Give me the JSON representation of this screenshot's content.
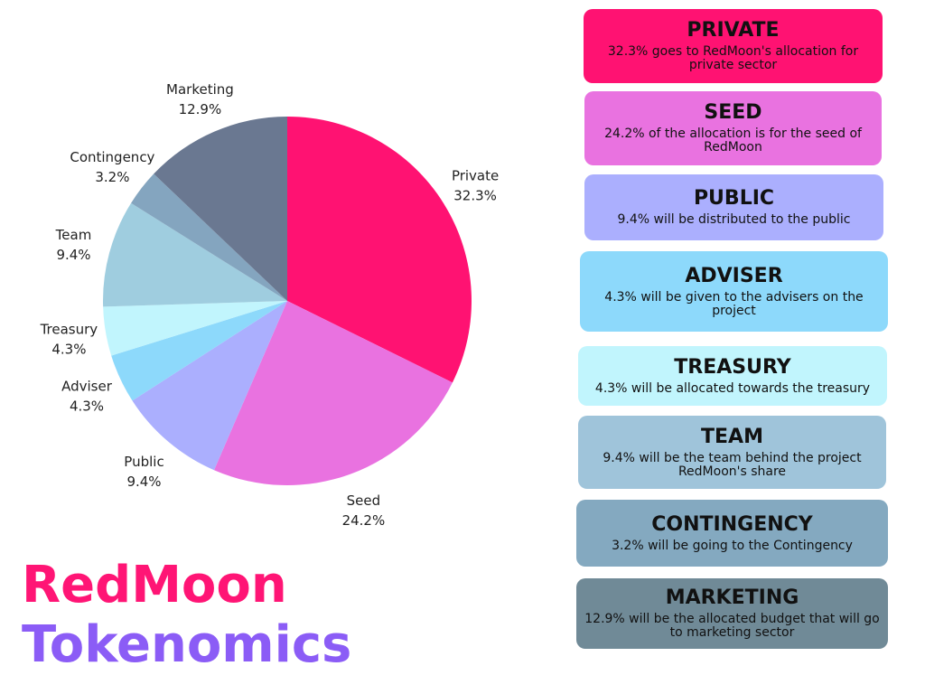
{
  "title": {
    "line1": "RedMoon",
    "line2": "Tokenomics",
    "line1_color": "#ff1575",
    "line2_color": "#8b5cf6"
  },
  "chart_data": {
    "type": "pie",
    "title": "",
    "slices": [
      {
        "label": "Private",
        "value": 32.3,
        "value_label": "32.3%",
        "color": "#ff1272"
      },
      {
        "label": "Seed",
        "value": 24.2,
        "value_label": "24.2%",
        "color": "#e972e0"
      },
      {
        "label": "Public",
        "value": 9.4,
        "value_label": "9.4%",
        "color": "#abaffe"
      },
      {
        "label": "Adviser",
        "value": 4.3,
        "value_label": "4.3%",
        "color": "#8dd9fb"
      },
      {
        "label": "Treasury",
        "value": 4.3,
        "value_label": "4.3%",
        "color": "#c1f5fd"
      },
      {
        "label": "Team",
        "value": 9.4,
        "value_label": "9.4%",
        "color": "#9fcddf"
      },
      {
        "label": "Contingency",
        "value": 3.2,
        "value_label": "3.2%",
        "color": "#84a5bf"
      },
      {
        "label": "Marketing",
        "value": 12.9,
        "value_label": "12.9%",
        "color": "#6a7891"
      }
    ]
  },
  "cards": [
    {
      "title": "PRIVATE",
      "desc": "32.3% goes to RedMoon's allocation for private sector",
      "bg": "#ff1272",
      "fg": "#111111"
    },
    {
      "title": "SEED",
      "desc": "24.2% of the allocation is for the seed of RedMoon",
      "bg": "#e972e0",
      "fg": "#111111"
    },
    {
      "title": "PUBLIC",
      "desc": "9.4% will be distributed to the public",
      "bg": "#abaffe",
      "fg": "#111111"
    },
    {
      "title": "ADVISER",
      "desc": "4.3% will be given to the advisers on the project",
      "bg": "#8dd9fb",
      "fg": "#111111"
    },
    {
      "title": "TREASURY",
      "desc": "4.3% will be allocated towards the treasury",
      "bg": "#c1f5fd",
      "fg": "#111111"
    },
    {
      "title": "TEAM",
      "desc": "9.4% will be the team behind the project RedMoon's share",
      "bg": "#9fc4da",
      "fg": "#111111"
    },
    {
      "title": "CONTINGENCY",
      "desc": "3.2% will be going to the Contingency",
      "bg": "#84a9c0",
      "fg": "#111111"
    },
    {
      "title": "MARKETING",
      "desc": "12.9% will be the allocated budget that will go to marketing sector",
      "bg": "#708a97",
      "fg": "#111111"
    }
  ]
}
